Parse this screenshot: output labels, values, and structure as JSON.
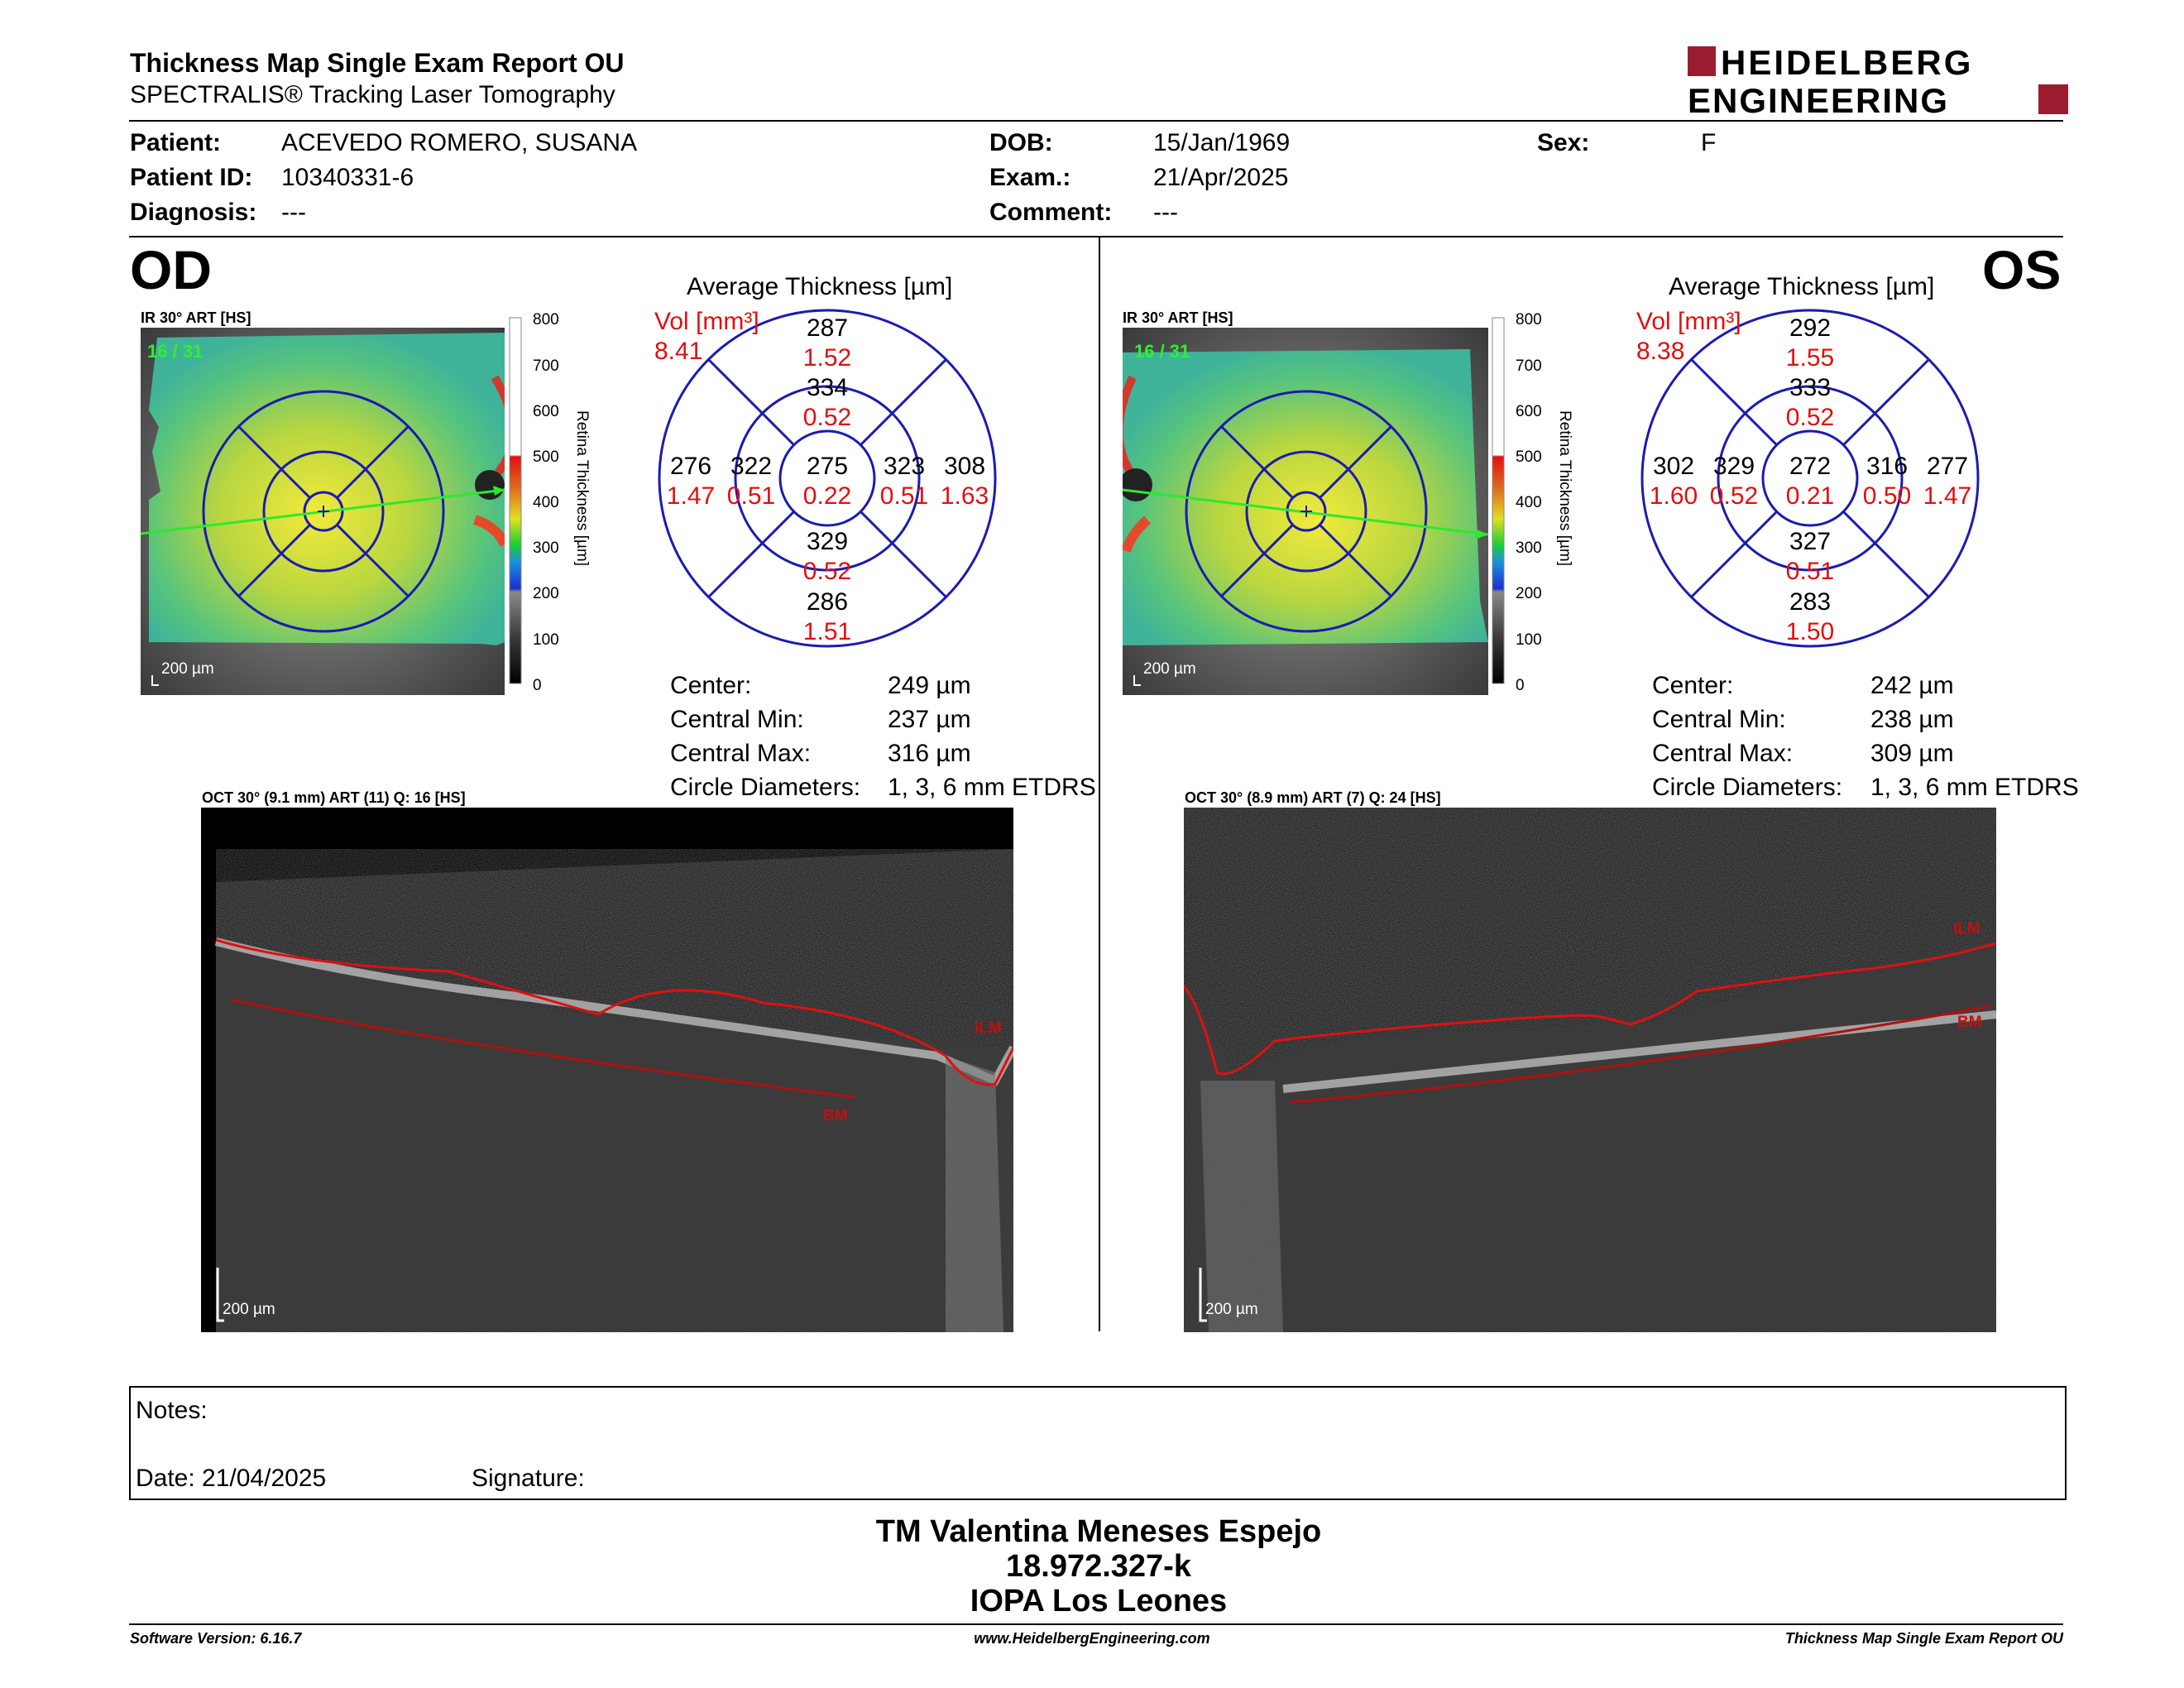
{
  "header": {
    "title": "Thickness Map Single Exam Report OU",
    "subtitle": "SPECTRALIS® Tracking Laser Tomography",
    "logo_line1": "HEIDELBERG",
    "logo_line2": "ENGINEERING",
    "logo_color": "#9b1c2e"
  },
  "patient": {
    "patient_label": "Patient:",
    "patient": "ACEVEDO ROMERO, SUSANA",
    "id_label": "Patient ID:",
    "id": "10340331-6",
    "diagnosis_label": "Diagnosis:",
    "diagnosis": "---",
    "dob_label": "DOB:",
    "dob": "15/Jan/1969",
    "exam_label": "Exam.:",
    "exam": "21/Apr/2025",
    "comment_label": "Comment:",
    "comment": "---",
    "sex_label": "Sex:",
    "sex": "F"
  },
  "od": {
    "eye": "OD",
    "ir_label": "IR 30° ART [HS]",
    "frames": "16 / 31",
    "scale": "200 µm",
    "grid_title": "Average Thickness [µm]",
    "vol_label": "Vol [mm³]",
    "vol": "8.41",
    "grid": {
      "center": {
        "t": "275",
        "v": "0.22"
      },
      "sup_in": {
        "t": "334",
        "v": "0.52"
      },
      "sup_out": {
        "t": "287",
        "v": "1.52"
      },
      "inf_in": {
        "t": "329",
        "v": "0.52"
      },
      "inf_out": {
        "t": "286",
        "v": "1.51"
      },
      "left_in": {
        "t": "322",
        "v": "0.51"
      },
      "left_out": {
        "t": "276",
        "v": "1.47"
      },
      "right_in": {
        "t": "323",
        "v": "0.51"
      },
      "right_out": {
        "t": "308",
        "v": "1.63"
      }
    },
    "stats": {
      "center_label": "Center:",
      "center": "249 µm",
      "min_label": "Central Min:",
      "min": "237 µm",
      "max_label": "Central Max:",
      "max": "316 µm",
      "diam_label": "Circle Diameters:",
      "diam": "1, 3, 6 mm ETDRS"
    },
    "oct_label": "OCT 30° (9.1 mm) ART (11) Q: 16 [HS]",
    "ilm": "ILM",
    "bm": "BM",
    "oct_scale": "200 µm"
  },
  "os": {
    "eye": "OS",
    "ir_label": "IR 30° ART [HS]",
    "frames": "16 / 31",
    "scale": "200 µm",
    "grid_title": "Average Thickness [µm]",
    "vol_label": "Vol [mm³]",
    "vol": "8.38",
    "grid": {
      "center": {
        "t": "272",
        "v": "0.21"
      },
      "sup_in": {
        "t": "333",
        "v": "0.52"
      },
      "sup_out": {
        "t": "292",
        "v": "1.55"
      },
      "inf_in": {
        "t": "327",
        "v": "0.51"
      },
      "inf_out": {
        "t": "283",
        "v": "1.50"
      },
      "left_in": {
        "t": "329",
        "v": "0.52"
      },
      "left_out": {
        "t": "302",
        "v": "1.60"
      },
      "right_in": {
        "t": "316",
        "v": "0.50"
      },
      "right_out": {
        "t": "277",
        "v": "1.47"
      }
    },
    "stats": {
      "center_label": "Center:",
      "center": "242 µm",
      "min_label": "Central Min:",
      "min": "238 µm",
      "max_label": "Central Max:",
      "max": "309 µm",
      "diam_label": "Circle Diameters:",
      "diam": "1, 3, 6 mm ETDRS"
    },
    "oct_label": "OCT 30° (8.9 mm) ART (7) Q: 24 [HS]",
    "ilm": "ILM",
    "bm": "BM",
    "oct_scale": "200 µm"
  },
  "colorbar": {
    "ticks": [
      "800",
      "700",
      "600",
      "500",
      "400",
      "300",
      "200",
      "100",
      "0"
    ],
    "label": "Retina  Thickness [µm]"
  },
  "notes": {
    "notes_label": "Notes:",
    "date": "Date: 21/04/2025",
    "signature": "Signature:"
  },
  "footer": {
    "name": "TM Valentina Meneses Espejo",
    "rut": "18.972.327-k",
    "clinic": "IOPA Los Leones",
    "software": "Software Version: 6.16.7",
    "url": "www.HeidelbergEngineering.com",
    "report": "Thickness Map Single Exam Report OU"
  }
}
